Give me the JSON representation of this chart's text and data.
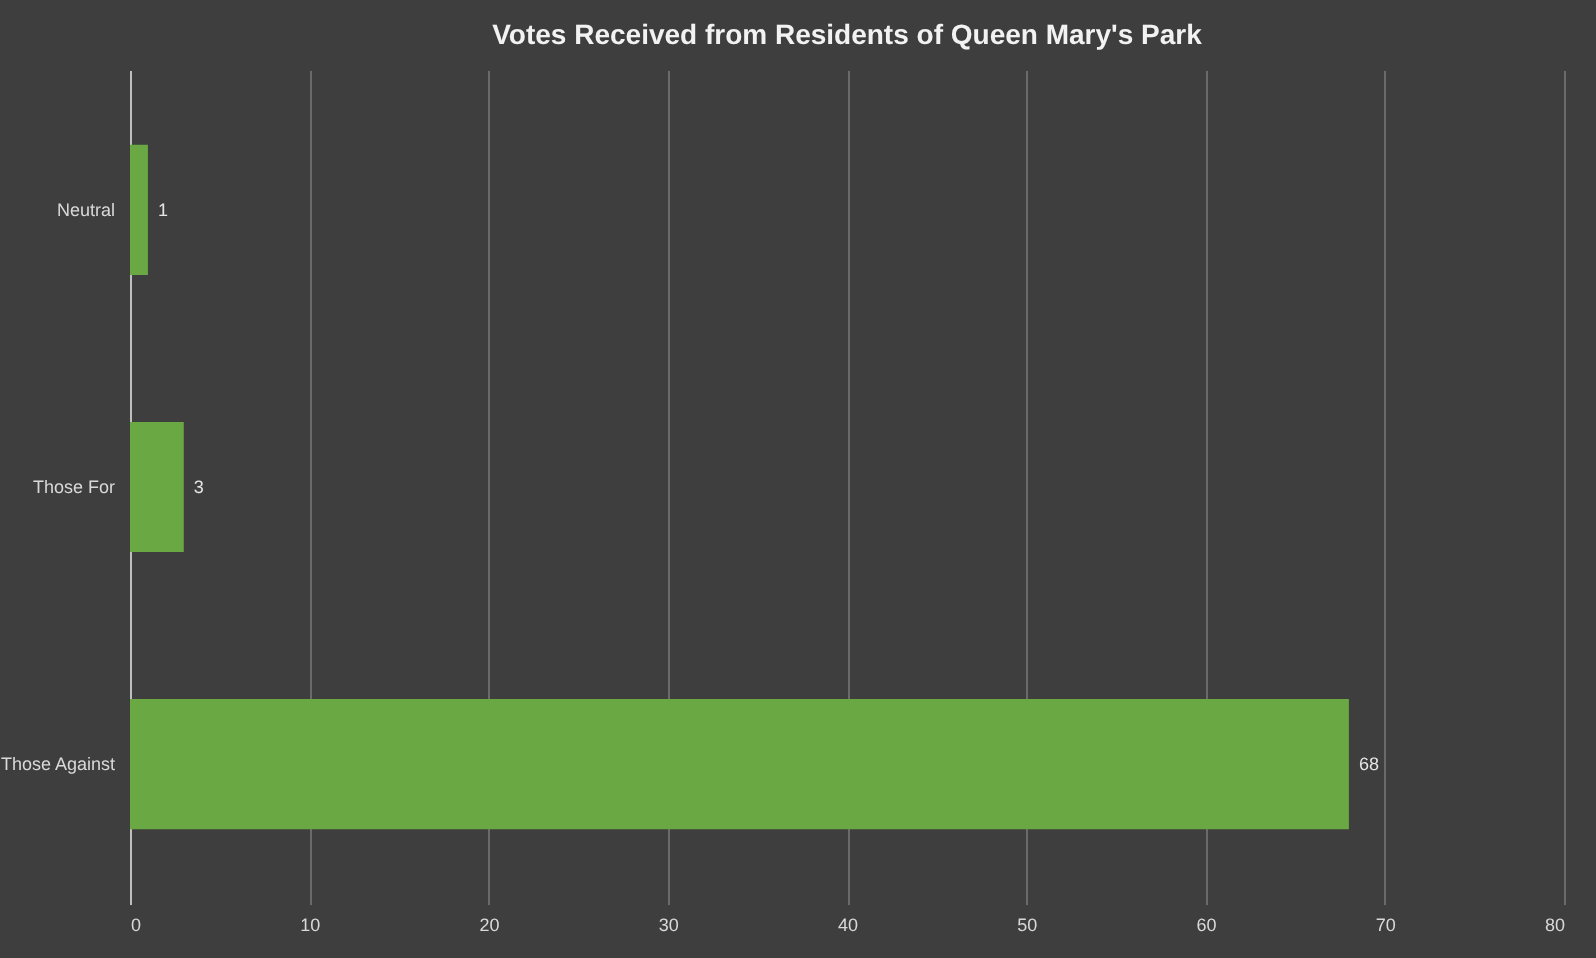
{
  "chart_data": {
    "type": "bar",
    "orientation": "horizontal",
    "title": "Votes Received from Residents of Queen Mary's Park",
    "categories": [
      "Neutral",
      "Those For",
      "Those Against"
    ],
    "values": [
      1,
      3,
      68
    ],
    "color": "#6aa844",
    "xlim": [
      0,
      80
    ],
    "xticks": [
      0,
      10,
      20,
      30,
      40,
      50,
      60,
      70,
      80
    ],
    "grid": "x",
    "data_labels": true
  }
}
